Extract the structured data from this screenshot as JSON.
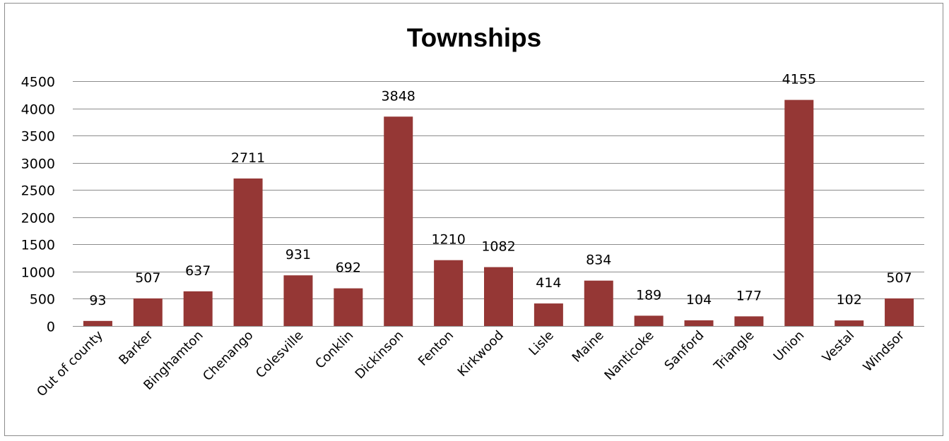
{
  "chart_data": {
    "type": "bar",
    "title": "Townships",
    "xlabel": "",
    "ylabel": "",
    "ylim": [
      0,
      4500
    ],
    "yticks": [
      0,
      500,
      1000,
      1500,
      2000,
      2500,
      3000,
      3500,
      4000,
      4500
    ],
    "grid": true,
    "legend": "none",
    "bar_color": "#953735",
    "categories": [
      "Out of county",
      "Barker",
      "Binghamton",
      "Chenango",
      "Colesville",
      "Conklin",
      "Dickinson",
      "Fenton",
      "Kirkwood",
      "Lisle",
      "Maine",
      "Nanticoke",
      "Sanford",
      "Triangle",
      "Union",
      "Vestal",
      "Windsor"
    ],
    "values": [
      93,
      507,
      637,
      2711,
      931,
      692,
      3848,
      1210,
      1082,
      414,
      834,
      189,
      104,
      177,
      4155,
      102,
      507
    ],
    "data_labels": true
  }
}
